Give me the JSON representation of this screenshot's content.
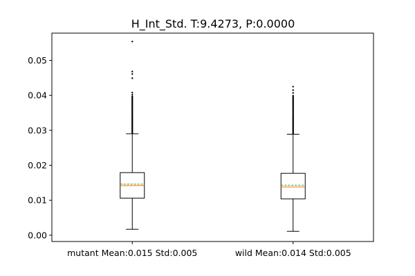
{
  "chart_data": {
    "type": "box",
    "title": "H_Int_Std. T:9.4273, P:0.0000",
    "xlabel": "",
    "ylabel": "",
    "ylim": [
      -0.0018,
      0.0578
    ],
    "yticks": [
      0.0,
      0.01,
      0.02,
      0.03,
      0.04,
      0.05
    ],
    "ytick_labels": [
      "0.00",
      "0.01",
      "0.02",
      "0.03",
      "0.04",
      "0.05"
    ],
    "grid": false,
    "legend": "none",
    "categories": [
      "mutant Mean:0.015 Std:0.005",
      "wild Mean:0.014 Std:0.005"
    ],
    "series": [
      {
        "category": "mutant Mean:0.015 Std:0.005",
        "whislo": 0.0017,
        "q1": 0.0106,
        "median": 0.0142,
        "mean": 0.0146,
        "q3": 0.0179,
        "whishi": 0.029,
        "fliers": [
          0.0292,
          0.0295,
          0.0298,
          0.0301,
          0.0304,
          0.0307,
          0.031,
          0.0313,
          0.0316,
          0.0319,
          0.0322,
          0.0325,
          0.0328,
          0.0331,
          0.0334,
          0.0337,
          0.034,
          0.0343,
          0.0346,
          0.0349,
          0.0352,
          0.0355,
          0.0358,
          0.0361,
          0.0364,
          0.0367,
          0.037,
          0.0373,
          0.0376,
          0.0379,
          0.0382,
          0.0385,
          0.0388,
          0.0391,
          0.0394,
          0.0397,
          0.0402,
          0.0408,
          0.0449,
          0.0461,
          0.0468,
          0.0554
        ]
      },
      {
        "category": "wild Mean:0.014 Std:0.005",
        "whislo": 0.0011,
        "q1": 0.0104,
        "median": 0.0138,
        "mean": 0.0143,
        "q3": 0.0177,
        "whishi": 0.0289,
        "fliers": [
          0.0291,
          0.0294,
          0.0297,
          0.03,
          0.0303,
          0.0306,
          0.0309,
          0.0312,
          0.0315,
          0.0318,
          0.0321,
          0.0324,
          0.0327,
          0.033,
          0.0333,
          0.0336,
          0.0339,
          0.0342,
          0.0345,
          0.0348,
          0.0351,
          0.0354,
          0.0357,
          0.036,
          0.0363,
          0.0366,
          0.0369,
          0.0372,
          0.0375,
          0.0378,
          0.0381,
          0.0384,
          0.0387,
          0.039,
          0.0393,
          0.0396,
          0.0399,
          0.0407,
          0.0415,
          0.0425
        ]
      }
    ],
    "colors": {
      "box": "#000000",
      "median": "#ff7f0e",
      "mean": "#2ca02c",
      "flier": "#000000"
    }
  }
}
